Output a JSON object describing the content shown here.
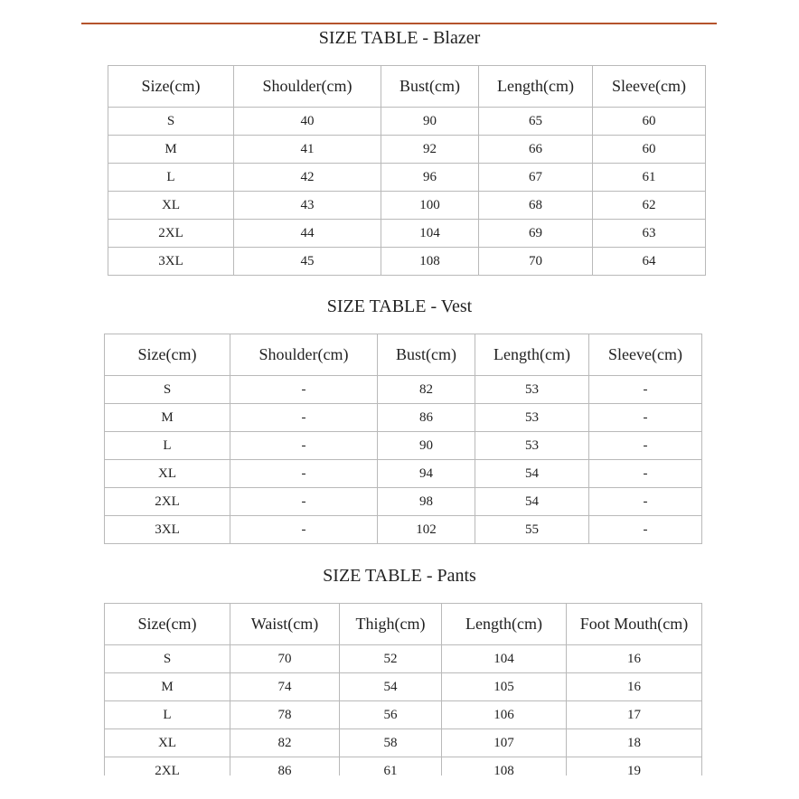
{
  "tables": [
    {
      "title": "SIZE TABLE - Blazer",
      "headers": [
        "Size(cm)",
        "Shoulder(cm)",
        "Bust(cm)",
        "Length(cm)",
        "Sleeve(cm)"
      ],
      "rows": [
        [
          "S",
          "40",
          "90",
          "65",
          "60"
        ],
        [
          "M",
          "41",
          "92",
          "66",
          "60"
        ],
        [
          "L",
          "42",
          "96",
          "67",
          "61"
        ],
        [
          "XL",
          "43",
          "100",
          "68",
          "62"
        ],
        [
          "2XL",
          "44",
          "104",
          "69",
          "63"
        ],
        [
          "3XL",
          "45",
          "108",
          "70",
          "64"
        ]
      ]
    },
    {
      "title": "SIZE TABLE - Vest",
      "headers": [
        "Size(cm)",
        "Shoulder(cm)",
        "Bust(cm)",
        "Length(cm)",
        "Sleeve(cm)"
      ],
      "rows": [
        [
          "S",
          "-",
          "82",
          "53",
          "-"
        ],
        [
          "M",
          "-",
          "86",
          "53",
          "-"
        ],
        [
          "L",
          "-",
          "90",
          "53",
          "-"
        ],
        [
          "XL",
          "-",
          "94",
          "54",
          "-"
        ],
        [
          "2XL",
          "-",
          "98",
          "54",
          "-"
        ],
        [
          "3XL",
          "-",
          "102",
          "55",
          "-"
        ]
      ]
    },
    {
      "title": "SIZE TABLE - Pants",
      "headers": [
        "Size(cm)",
        "Waist(cm)",
        "Thigh(cm)",
        "Length(cm)",
        "Foot Mouth(cm)"
      ],
      "rows": [
        [
          "S",
          "70",
          "52",
          "104",
          "16"
        ],
        [
          "M",
          "74",
          "54",
          "105",
          "16"
        ],
        [
          "L",
          "78",
          "56",
          "106",
          "17"
        ],
        [
          "XL",
          "82",
          "58",
          "107",
          "18"
        ],
        [
          "2XL",
          "86",
          "61",
          "108",
          "19"
        ]
      ]
    }
  ],
  "colors": {
    "accent_rule": "#b5532c",
    "grid": "#b9b9b9"
  }
}
